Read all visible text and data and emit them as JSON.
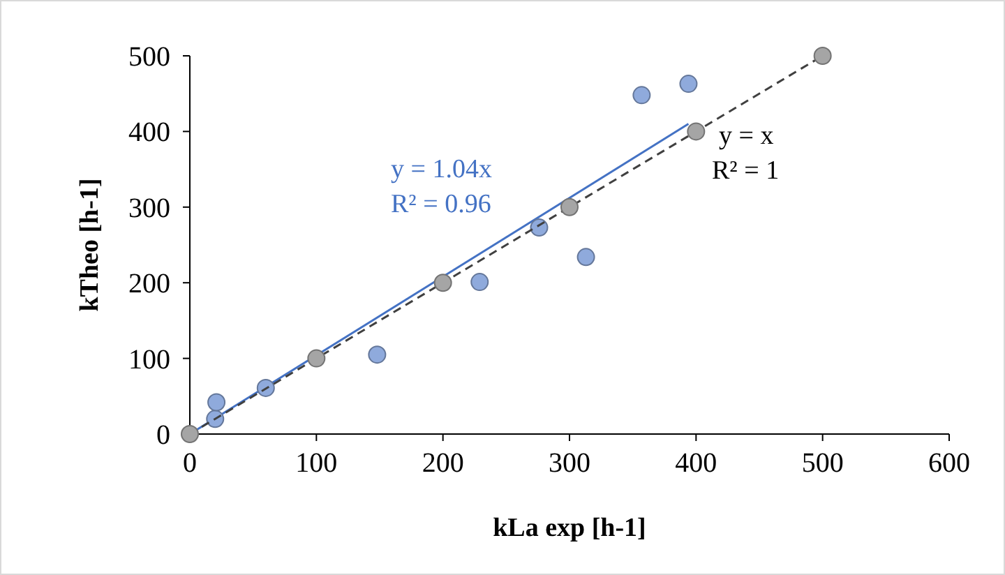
{
  "chart_data": {
    "type": "scatter",
    "xlabel": "kLa exp [h-1]",
    "ylabel": "kTheo [h-1]",
    "xlim": [
      0,
      600
    ],
    "ylim": [
      0,
      500
    ],
    "xticks": [
      0,
      100,
      200,
      300,
      400,
      500,
      600
    ],
    "yticks": [
      0,
      100,
      200,
      300,
      400,
      500
    ],
    "grid": false,
    "marker": "circle",
    "series": [
      {
        "type": "line",
        "color": "#4472c4",
        "x": [
          0,
          394
        ],
        "values": [
          0,
          410
        ],
        "marker": "none"
      },
      {
        "color": "#8faadc",
        "x": [
          20,
          21,
          60,
          148,
          229,
          276,
          313,
          357,
          394
        ],
        "values": [
          20,
          42,
          61,
          105,
          201,
          273,
          234,
          448,
          463
        ]
      },
      {
        "type": "line",
        "color": "#404040",
        "x": [
          0,
          500
        ],
        "values": [
          0,
          500
        ],
        "marker": "none",
        "line_style": "dashed"
      },
      {
        "color": "#a5a5a5",
        "x": [
          0,
          100,
          200,
          300,
          400,
          500
        ],
        "values": [
          0,
          100,
          200,
          300,
          400,
          500
        ]
      }
    ],
    "annotations": [
      "y = 1.04x",
      "R² = 0.96",
      "y = x",
      "R² = 1"
    ]
  }
}
